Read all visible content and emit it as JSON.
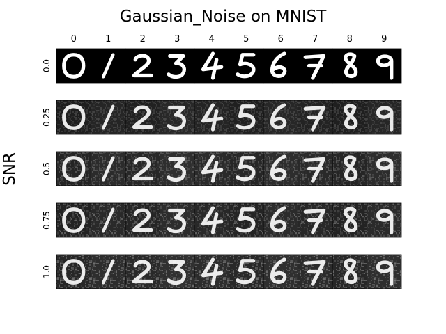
{
  "chart_data": {
    "type": "image_grid",
    "title": "Gaussian_Noise on MNIST",
    "ylabel": "SNR",
    "columns": [
      "0",
      "1",
      "2",
      "3",
      "4",
      "5",
      "6",
      "7",
      "8",
      "9"
    ],
    "rows": [
      "0.0",
      "0.25",
      "0.5",
      "0.75",
      "1.0"
    ],
    "cell_content": "MNIST digit image matching column label",
    "digit_color": "#ffffff",
    "background_color": "#000000",
    "grid": false
  }
}
